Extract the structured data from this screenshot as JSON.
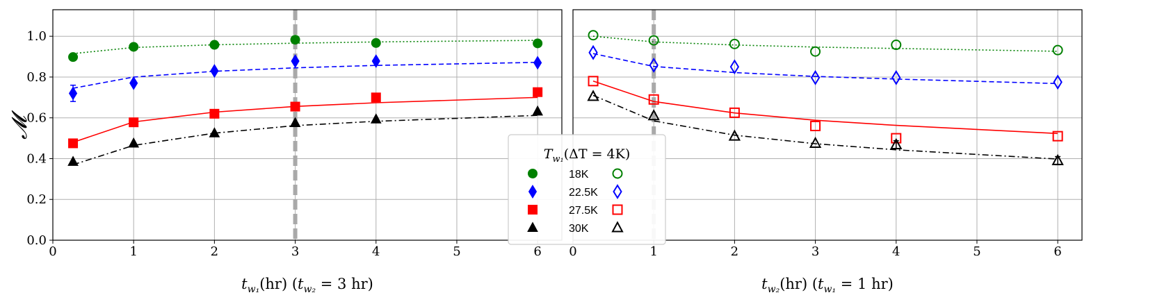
{
  "chart_data": [
    {
      "type": "scatter",
      "xlabel": "t_w1(hr) (t_w2 = 3 hr)",
      "xlabel_parts": {
        "t": "t",
        "sub": "w₁",
        "mid": "(hr) (",
        "t2": "t",
        "sub2": "w₂",
        "eq": " = 3 hr)"
      },
      "ylabel": "𝓜",
      "xlim": [
        0,
        6.3
      ],
      "ylim": [
        0,
        1.13
      ],
      "xticks": [
        "0",
        "1",
        "2",
        "3",
        "4",
        "5",
        "6"
      ],
      "yticks": [
        "0.0",
        "0.2",
        "0.4",
        "0.6",
        "0.8",
        "1.0"
      ],
      "grid": true,
      "vline_x": 3,
      "series": [
        {
          "name": "18K",
          "color": "#008000",
          "marker": "circle",
          "filled": true,
          "linestyle": "dotted",
          "x": [
            0.25,
            1,
            2,
            3,
            4,
            6
          ],
          "y": [
            0.898,
            0.948,
            0.958,
            0.983,
            0.967,
            0.965
          ],
          "fit_pts": [
            [
              0.25,
              0.915
            ],
            [
              1,
              0.945
            ],
            [
              2,
              0.958
            ],
            [
              3,
              0.966
            ],
            [
              4,
              0.972
            ],
            [
              6,
              0.98
            ]
          ]
        },
        {
          "name": "22.5K",
          "color": "#0000ff",
          "marker": "diamond",
          "filled": true,
          "linestyle": "dashed",
          "x": [
            0.25,
            1,
            2,
            3,
            4,
            6
          ],
          "y": [
            0.72,
            0.77,
            0.83,
            0.878,
            0.878,
            0.87
          ],
          "err": [
            0.04,
            0.0,
            0.0,
            0.0,
            0.0,
            0.0
          ],
          "fit_pts": [
            [
              0.25,
              0.745
            ],
            [
              1,
              0.8
            ],
            [
              2,
              0.828
            ],
            [
              3,
              0.845
            ],
            [
              4,
              0.857
            ],
            [
              6,
              0.872
            ]
          ]
        },
        {
          "name": "27.5K",
          "color": "#ff0000",
          "marker": "square",
          "filled": true,
          "linestyle": "solid",
          "x": [
            0.25,
            1,
            2,
            3,
            4,
            6
          ],
          "y": [
            0.475,
            0.578,
            0.62,
            0.655,
            0.7,
            0.726
          ],
          "fit_pts": [
            [
              0.25,
              0.48
            ],
            [
              1,
              0.58
            ],
            [
              2,
              0.628
            ],
            [
              3,
              0.656
            ],
            [
              4,
              0.674
            ],
            [
              6,
              0.7
            ]
          ]
        },
        {
          "name": "30K",
          "color": "#000000",
          "marker": "triangle",
          "filled": true,
          "linestyle": "dashdot",
          "x": [
            0.25,
            1,
            2,
            3,
            4,
            6
          ],
          "y": [
            0.385,
            0.475,
            0.525,
            0.575,
            0.593,
            0.632
          ],
          "fit_pts": [
            [
              0.25,
              0.37
            ],
            [
              1,
              0.465
            ],
            [
              2,
              0.525
            ],
            [
              3,
              0.562
            ],
            [
              4,
              0.583
            ],
            [
              6,
              0.612
            ]
          ]
        }
      ]
    },
    {
      "type": "scatter",
      "xlabel": "t_w2(hr) (t_w1 = 1 hr)",
      "xlabel_parts": {
        "t": "t",
        "sub": "w₂",
        "mid": "(hr) (",
        "t2": "t",
        "sub2": "w₁",
        "eq": " = 1 hr)"
      },
      "xlim": [
        0,
        6.3
      ],
      "ylim": [
        0,
        1.13
      ],
      "xticks": [
        "0",
        "1",
        "2",
        "3",
        "4",
        "5",
        "6"
      ],
      "grid": true,
      "vline_x": 1,
      "series": [
        {
          "name": "18K",
          "color": "#008000",
          "marker": "circle",
          "filled": false,
          "linestyle": "dotted",
          "x": [
            0.25,
            1,
            2,
            3,
            4,
            6
          ],
          "y": [
            1.005,
            0.98,
            0.962,
            0.925,
            0.958,
            0.932
          ],
          "fit_pts": [
            [
              0.25,
              1.0
            ],
            [
              1,
              0.972
            ],
            [
              2,
              0.957
            ],
            [
              3,
              0.947
            ],
            [
              4,
              0.94
            ],
            [
              6,
              0.926
            ]
          ]
        },
        {
          "name": "22.5K",
          "color": "#0000ff",
          "marker": "diamond",
          "filled": false,
          "linestyle": "dashed",
          "x": [
            0.25,
            1,
            2,
            3,
            4,
            6
          ],
          "y": [
            0.92,
            0.858,
            0.85,
            0.797,
            0.797,
            0.775
          ],
          "fit_pts": [
            [
              0.25,
              0.915
            ],
            [
              1,
              0.852
            ],
            [
              2,
              0.822
            ],
            [
              3,
              0.803
            ],
            [
              4,
              0.79
            ],
            [
              6,
              0.768
            ]
          ]
        },
        {
          "name": "27.5K",
          "color": "#ff0000",
          "marker": "square",
          "filled": false,
          "linestyle": "solid",
          "x": [
            0.25,
            1,
            2,
            3,
            4,
            6
          ],
          "y": [
            0.78,
            0.69,
            0.625,
            0.56,
            0.5,
            0.51
          ],
          "fit_pts": [
            [
              0.25,
              0.78
            ],
            [
              1,
              0.68
            ],
            [
              2,
              0.624
            ],
            [
              3,
              0.588
            ],
            [
              4,
              0.563
            ],
            [
              6,
              0.523
            ]
          ]
        },
        {
          "name": "30K",
          "color": "#000000",
          "marker": "triangle",
          "filled": false,
          "linestyle": "dashdot",
          "x": [
            0.25,
            1,
            2,
            3,
            4,
            6
          ],
          "y": [
            0.705,
            0.61,
            0.51,
            0.475,
            0.468,
            0.39
          ],
          "err": [
            0.0,
            0.0,
            0.0,
            0.0,
            0.02,
            0.02
          ],
          "fit_pts": [
            [
              0.25,
              0.71
            ],
            [
              1,
              0.585
            ],
            [
              2,
              0.515
            ],
            [
              3,
              0.473
            ],
            [
              4,
              0.443
            ],
            [
              6,
              0.398
            ]
          ]
        }
      ]
    }
  ],
  "legend": {
    "title": "T_w1(ΔT = 4K)",
    "title_parts": {
      "t": "T",
      "sub": "w₁",
      "rest": "(ΔT = 4K)"
    },
    "placement": "center-bottom, overlapping both panels",
    "entries": [
      "18K",
      "22.5K",
      "27.5K",
      "30K"
    ]
  }
}
